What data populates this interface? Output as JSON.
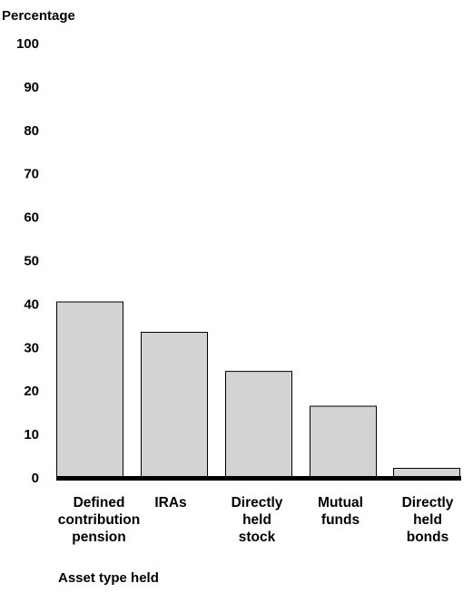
{
  "chart_data": {
    "type": "bar",
    "title": "",
    "ylabel": "Percentage",
    "xlabel": "Asset type held",
    "ylim": [
      0,
      100
    ],
    "yticks": [
      0,
      10,
      20,
      30,
      40,
      50,
      60,
      70,
      80,
      90,
      100
    ],
    "grid": false,
    "categories": [
      [
        "Defined",
        "contribution",
        "pension"
      ],
      [
        "IRAs"
      ],
      [
        "Directly",
        "held",
        "stock"
      ],
      [
        "Mutual",
        "funds"
      ],
      [
        "Directly",
        "held",
        "bonds"
      ]
    ],
    "values": [
      40.5,
      33.5,
      24.5,
      16.5,
      2.2
    ],
    "colors": {
      "bar_fill": "#d3d3d3",
      "bar_stroke": "#000000",
      "baseline": "#000000"
    }
  }
}
